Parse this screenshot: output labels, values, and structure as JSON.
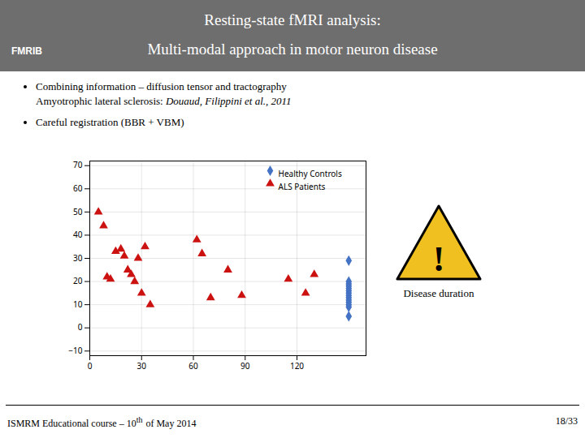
{
  "chart_data": {
    "type": "scatter",
    "title": "Resting-state fMRI analysis:",
    "subtitle": "Multi-modal approach in motor neuron disease",
    "annotations": [
      "FMRIB",
      "Combining information – diffusion tensor and tractography",
      "Amyotrophic lateral sclerosis: ",
      "Douaud, Filippini et al., 2011",
      "Careful registration (BBR + VBM)",
      "!",
      "Disease duration",
      "ISMRM Educational course – 10",
      "th",
      "of May 2014",
      "18/33"
    ],
    "series": [
      {
        "name": "Healthy Controls",
        "color": "#4472c4",
        "marker": "diamond",
        "x": [
          150,
          150,
          150,
          150,
          150,
          150,
          150,
          150,
          150,
          150,
          150,
          150,
          150,
          150
        ],
        "values": [
          29,
          20,
          19,
          18,
          17,
          16,
          15,
          14,
          13,
          12,
          11,
          10,
          9,
          5
        ]
      },
      {
        "name": "ALS Patients",
        "color": "#cc1111",
        "marker": "triangle",
        "x": [
          5,
          8,
          10,
          12,
          15,
          18,
          20,
          22,
          24,
          26,
          28,
          30,
          32,
          35,
          62,
          65,
          70,
          80,
          88,
          115,
          125,
          130
        ],
        "values": [
          50,
          44,
          22,
          21,
          33,
          34,
          31,
          25,
          23,
          20,
          30,
          15,
          35,
          10,
          38,
          32,
          13,
          25,
          14,
          21,
          15,
          23
        ]
      }
    ],
    "xlim": [
      0,
      160
    ],
    "xticks": [
      0,
      30,
      60,
      90,
      120
    ],
    "ylim": [
      -12,
      72
    ],
    "yticks": [
      -10,
      0,
      10,
      20,
      30,
      40,
      50,
      60,
      70
    ],
    "grid": true,
    "legend": "upper right"
  }
}
